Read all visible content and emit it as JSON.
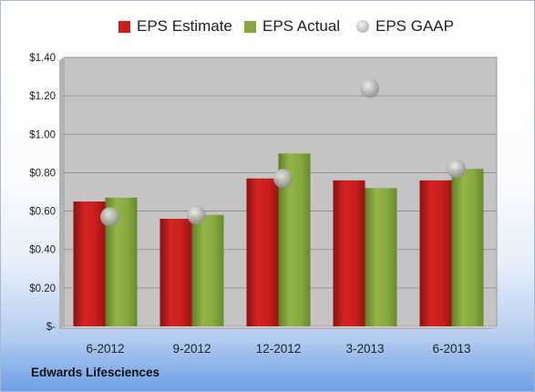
{
  "company": "Edwards Lifesciences",
  "chart_data": {
    "type": "bar",
    "categories": [
      "6-2012",
      "9-2012",
      "12-2012",
      "3-2013",
      "6-2013"
    ],
    "series": [
      {
        "name": "EPS Estimate",
        "kind": "bar",
        "color": "#c81e1e",
        "values": [
          0.65,
          0.56,
          0.77,
          0.76,
          0.76
        ]
      },
      {
        "name": "EPS Actual",
        "kind": "bar",
        "color": "#86a83e",
        "values": [
          0.67,
          0.58,
          0.9,
          0.72,
          0.82
        ]
      },
      {
        "name": "EPS GAAP",
        "kind": "marker",
        "color": "#a8a8a8",
        "values": [
          0.57,
          0.58,
          0.77,
          1.24,
          0.82
        ]
      }
    ],
    "yticks": [
      "$-",
      "$0.20",
      "$0.40",
      "$0.60",
      "$0.80",
      "$1.00",
      "$1.20",
      "$1.40"
    ],
    "ylim": [
      0,
      1.4
    ],
    "grid": true,
    "legend": "top"
  }
}
